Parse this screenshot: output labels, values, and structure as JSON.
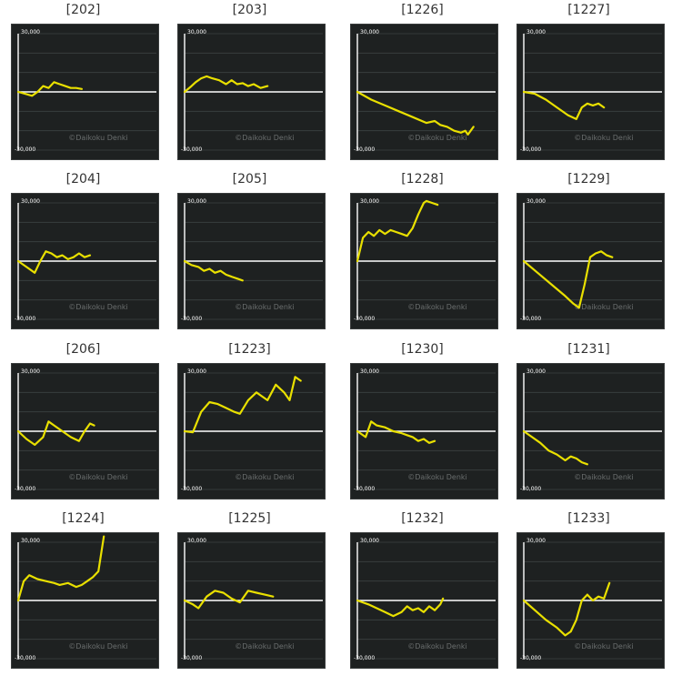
{
  "axis": {
    "ymax_label": "30,000",
    "ymin_label": "-30,000",
    "ylim": [
      -30000,
      30000
    ]
  },
  "watermark": "©Daikoku Denki",
  "line_color": "#e9e000",
  "background_color": "#1e2121",
  "chart_data": [
    {
      "type": "line",
      "label": "[202]",
      "ylim": [
        -30000,
        30000
      ],
      "x": [
        0,
        0.05,
        0.1,
        0.14,
        0.18,
        0.22,
        0.26,
        0.3,
        0.34,
        0.38,
        0.42,
        0.46
      ],
      "y": [
        0,
        -1000,
        -2000,
        0,
        3000,
        2000,
        5000,
        4000,
        3000,
        2000,
        2000,
        1500
      ]
    },
    {
      "type": "line",
      "label": "[203]",
      "ylim": [
        -30000,
        30000
      ],
      "x": [
        0,
        0.05,
        0.08,
        0.12,
        0.16,
        0.2,
        0.25,
        0.3,
        0.34,
        0.38,
        0.42,
        0.46,
        0.5,
        0.55,
        0.6
      ],
      "y": [
        0,
        3000,
        5000,
        7000,
        8000,
        7000,
        6000,
        4000,
        6000,
        4000,
        4500,
        3000,
        4000,
        2000,
        3000
      ]
    },
    {
      "type": "line",
      "label": "[1226]",
      "ylim": [
        -30000,
        30000
      ],
      "x": [
        0,
        0.1,
        0.2,
        0.3,
        0.4,
        0.5,
        0.56,
        0.6,
        0.65,
        0.7,
        0.75,
        0.78,
        0.8,
        0.82,
        0.84
      ],
      "y": [
        0,
        -4000,
        -7000,
        -10000,
        -13000,
        -16000,
        -15000,
        -17000,
        -18000,
        -20000,
        -21000,
        -20000,
        -22000,
        -20000,
        -18000
      ]
    },
    {
      "type": "line",
      "label": "[1227]",
      "ylim": [
        -30000,
        30000
      ],
      "x": [
        0,
        0.08,
        0.16,
        0.24,
        0.32,
        0.38,
        0.42,
        0.46,
        0.5,
        0.54,
        0.58
      ],
      "y": [
        0,
        -1000,
        -4000,
        -8000,
        -12000,
        -14000,
        -8000,
        -6000,
        -7000,
        -6000,
        -8000
      ]
    },
    {
      "type": "line",
      "label": "[204]",
      "ylim": [
        -30000,
        30000
      ],
      "x": [
        0,
        0.06,
        0.12,
        0.16,
        0.2,
        0.24,
        0.28,
        0.32,
        0.36,
        0.4,
        0.44,
        0.48,
        0.52
      ],
      "y": [
        0,
        -3000,
        -6000,
        0,
        5000,
        4000,
        2000,
        3000,
        1000,
        2000,
        4000,
        2000,
        3000
      ]
    },
    {
      "type": "line",
      "label": "[205]",
      "ylim": [
        -30000,
        30000
      ],
      "x": [
        0,
        0.05,
        0.1,
        0.14,
        0.18,
        0.22,
        0.26,
        0.3,
        0.34,
        0.38,
        0.42
      ],
      "y": [
        0,
        -2000,
        -3000,
        -5000,
        -4000,
        -6000,
        -5000,
        -7000,
        -8000,
        -9000,
        -10000
      ]
    },
    {
      "type": "line",
      "label": "[1228]",
      "ylim": [
        -30000,
        30000
      ],
      "x": [
        0,
        0.04,
        0.08,
        0.12,
        0.16,
        0.2,
        0.24,
        0.28,
        0.32,
        0.36,
        0.4,
        0.44,
        0.48,
        0.5,
        0.54,
        0.58
      ],
      "y": [
        0,
        12000,
        15000,
        13000,
        16000,
        14000,
        16000,
        15000,
        14000,
        13000,
        17000,
        24000,
        30000,
        31000,
        30000,
        29000
      ]
    },
    {
      "type": "line",
      "label": "[1229]",
      "ylim": [
        -30000,
        30000
      ],
      "x": [
        0,
        0.1,
        0.2,
        0.3,
        0.36,
        0.4,
        0.44,
        0.48,
        0.52,
        0.56,
        0.6,
        0.64
      ],
      "y": [
        0,
        -6000,
        -12000,
        -18000,
        -22000,
        -24000,
        -12000,
        2000,
        4000,
        5000,
        3000,
        2000
      ]
    },
    {
      "type": "line",
      "label": "[206]",
      "ylim": [
        -30000,
        30000
      ],
      "x": [
        0,
        0.06,
        0.12,
        0.18,
        0.22,
        0.26,
        0.32,
        0.38,
        0.44,
        0.48,
        0.52,
        0.55
      ],
      "y": [
        0,
        -4000,
        -7000,
        -3000,
        5000,
        3000,
        0,
        -3000,
        -5000,
        0,
        4000,
        3000
      ]
    },
    {
      "type": "line",
      "label": "[1223]",
      "ylim": [
        -30000,
        30000
      ],
      "x": [
        0,
        0.06,
        0.12,
        0.18,
        0.24,
        0.3,
        0.36,
        0.4,
        0.46,
        0.52,
        0.56,
        0.6,
        0.66,
        0.72,
        0.76,
        0.8,
        0.84
      ],
      "y": [
        0,
        -500,
        10000,
        15000,
        14000,
        12000,
        10000,
        9000,
        16000,
        20000,
        18000,
        16000,
        24000,
        20000,
        16000,
        28000,
        26000
      ]
    },
    {
      "type": "line",
      "label": "[1230]",
      "ylim": [
        -30000,
        30000
      ],
      "x": [
        0,
        0.06,
        0.1,
        0.14,
        0.2,
        0.26,
        0.32,
        0.36,
        0.4,
        0.44,
        0.48,
        0.52,
        0.56
      ],
      "y": [
        0,
        -3000,
        5000,
        3000,
        2000,
        0,
        -1000,
        -2000,
        -3000,
        -5000,
        -4000,
        -6000,
        -5000
      ]
    },
    {
      "type": "line",
      "label": "[1231]",
      "ylim": [
        -30000,
        30000
      ],
      "x": [
        0,
        0.06,
        0.12,
        0.18,
        0.24,
        0.3,
        0.34,
        0.38,
        0.42,
        0.46
      ],
      "y": [
        0,
        -3000,
        -6000,
        -10000,
        -12000,
        -15000,
        -13000,
        -14000,
        -16000,
        -17000
      ]
    },
    {
      "type": "line",
      "label": "[1224]",
      "ylim": [
        -30000,
        30000
      ],
      "x": [
        0,
        0.04,
        0.08,
        0.14,
        0.2,
        0.26,
        0.3,
        0.36,
        0.42,
        0.46,
        0.5,
        0.54,
        0.58,
        0.62
      ],
      "y": [
        0,
        10000,
        13000,
        11000,
        10000,
        9000,
        8000,
        9000,
        7000,
        8000,
        10000,
        12000,
        15000,
        33000
      ]
    },
    {
      "type": "line",
      "label": "[1225]",
      "ylim": [
        -30000,
        30000
      ],
      "x": [
        0,
        0.06,
        0.1,
        0.16,
        0.22,
        0.28,
        0.34,
        0.4,
        0.46,
        0.52,
        0.58,
        0.64
      ],
      "y": [
        0,
        -2000,
        -4000,
        2000,
        5000,
        4000,
        1000,
        -1000,
        5000,
        4000,
        3000,
        2000
      ]
    },
    {
      "type": "line",
      "label": "[1232]",
      "ylim": [
        -30000,
        30000
      ],
      "x": [
        0,
        0.08,
        0.14,
        0.2,
        0.26,
        0.32,
        0.36,
        0.4,
        0.44,
        0.48,
        0.52,
        0.56,
        0.6,
        0.62
      ],
      "y": [
        0,
        -2000,
        -4000,
        -6000,
        -8000,
        -6000,
        -3000,
        -5000,
        -4000,
        -6000,
        -3000,
        -5000,
        -2000,
        1000
      ]
    },
    {
      "type": "line",
      "label": "[1233]",
      "ylim": [
        -30000,
        30000
      ],
      "x": [
        0,
        0.08,
        0.16,
        0.24,
        0.3,
        0.34,
        0.38,
        0.42,
        0.46,
        0.5,
        0.54,
        0.58,
        0.62
      ],
      "y": [
        0,
        -5000,
        -10000,
        -14000,
        -18000,
        -16000,
        -10000,
        0,
        3000,
        0,
        2000,
        1000,
        9000
      ]
    }
  ]
}
